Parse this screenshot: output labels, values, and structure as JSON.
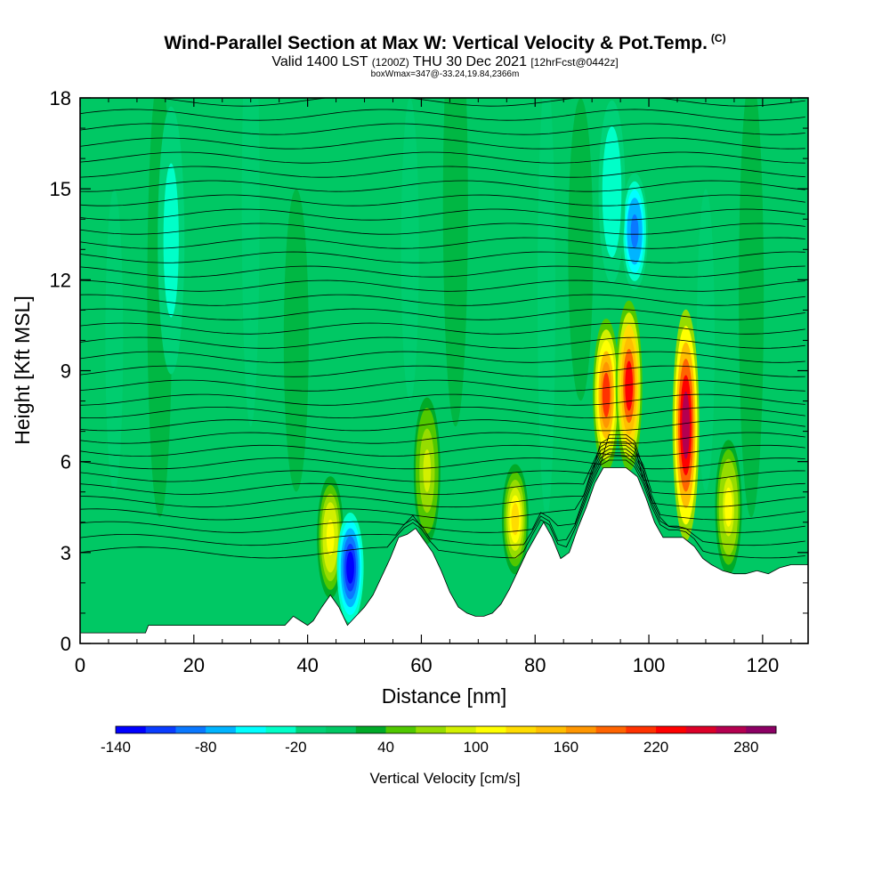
{
  "chart_data": {
    "type": "heatmap",
    "title": "Wind-Parallel Section at Max W: Vertical Velocity & Pot.Temp.",
    "title_mark": "(C)",
    "subtitle_valid": "Valid 1400 LST",
    "subtitle_z": "(1200Z)",
    "subtitle_date": "THU 30 Dec 2021",
    "subtitle_fcst": "[12hrFcst@0442z]",
    "subsubtitle": "boxWmax=347@-33.24,19.84,2366m",
    "xlabel": "Distance [nm]",
    "ylabel": "Height [Kft MSL]",
    "xlim": [
      0,
      128
    ],
    "ylim": [
      0,
      18
    ],
    "x_ticks": [
      0,
      20,
      40,
      60,
      80,
      100,
      120
    ],
    "y_ticks": [
      0,
      3,
      6,
      9,
      12,
      15,
      18
    ],
    "colorbar": {
      "label": "Vertical Velocity [cm/s]",
      "range": [
        -140,
        300
      ],
      "tick_labels": [
        "-140",
        "-80",
        "-20",
        "40",
        "100",
        "160",
        "220",
        "280"
      ],
      "tick_values": [
        -140,
        -80,
        -20,
        40,
        100,
        160,
        220,
        280
      ],
      "colors": [
        "#0000ff",
        "#0a3cff",
        "#0a78ff",
        "#00b4ff",
        "#00ffff",
        "#00ffc8",
        "#00d278",
        "#00c864",
        "#00aa28",
        "#50c800",
        "#96dc00",
        "#d2f000",
        "#ffff00",
        "#ffdc00",
        "#ffbe00",
        "#ff9600",
        "#ff6400",
        "#ff3200",
        "#ff0000",
        "#dc0028",
        "#b40050",
        "#8c0064"
      ]
    },
    "terrain_kft": [
      [
        0,
        0.35
      ],
      [
        11.5,
        0.35
      ],
      [
        12,
        0.6
      ],
      [
        36,
        0.6
      ],
      [
        37.5,
        0.9
      ],
      [
        40,
        0.6
      ],
      [
        41,
        0.75
      ],
      [
        42.5,
        1.2
      ],
      [
        44,
        1.6
      ],
      [
        45.5,
        1.2
      ],
      [
        47,
        0.6
      ],
      [
        48.5,
        0.9
      ],
      [
        50,
        1.2
      ],
      [
        51.5,
        1.6
      ],
      [
        53,
        2.2
      ],
      [
        54.5,
        2.8
      ],
      [
        56,
        3.5
      ],
      [
        57.5,
        3.6
      ],
      [
        59,
        3.8
      ],
      [
        60.5,
        3.4
      ],
      [
        62,
        3.0
      ],
      [
        63.5,
        2.4
      ],
      [
        65,
        1.7
      ],
      [
        66.5,
        1.2
      ],
      [
        68,
        1.0
      ],
      [
        69.5,
        0.9
      ],
      [
        71,
        0.9
      ],
      [
        72.5,
        1.0
      ],
      [
        74,
        1.3
      ],
      [
        75.5,
        1.8
      ],
      [
        77,
        2.4
      ],
      [
        78.5,
        3.0
      ],
      [
        80,
        3.5
      ],
      [
        81.5,
        4.0
      ],
      [
        83,
        3.5
      ],
      [
        84.5,
        2.8
      ],
      [
        86,
        3.0
      ],
      [
        87.5,
        3.8
      ],
      [
        89,
        4.5
      ],
      [
        90.5,
        5.3
      ],
      [
        92,
        5.8
      ],
      [
        94,
        5.8
      ],
      [
        96,
        5.8
      ],
      [
        98,
        5.5
      ],
      [
        99.5,
        4.8
      ],
      [
        101,
        4.0
      ],
      [
        102.5,
        3.5
      ],
      [
        104,
        3.5
      ],
      [
        106,
        3.5
      ],
      [
        108,
        3.2
      ],
      [
        109.5,
        2.8
      ],
      [
        111,
        2.6
      ],
      [
        113,
        2.4
      ],
      [
        115,
        2.3
      ],
      [
        117,
        2.3
      ],
      [
        119,
        2.4
      ],
      [
        121,
        2.3
      ],
      [
        123,
        2.5
      ],
      [
        125,
        2.6
      ],
      [
        128,
        2.6
      ]
    ],
    "updraft_cells": [
      {
        "x": 44,
        "z_bottom": 1.6,
        "z_top": 5.4,
        "peak_cm_s": 110
      },
      {
        "x": 61,
        "z_bottom": 3.4,
        "z_top": 8.0,
        "peak_cm_s": 90
      },
      {
        "x": 76.5,
        "z_bottom": 2.4,
        "z_top": 5.8,
        "peak_cm_s": 130
      },
      {
        "x": 92.5,
        "z_bottom": 5.8,
        "z_top": 10.6,
        "peak_cm_s": 200
      },
      {
        "x": 96.5,
        "z_bottom": 5.8,
        "z_top": 11.2,
        "peak_cm_s": 220
      },
      {
        "x": 106.5,
        "z_bottom": 3.5,
        "z_top": 10.9,
        "peak_cm_s": 260
      },
      {
        "x": 114,
        "z_bottom": 2.4,
        "z_top": 6.6,
        "peak_cm_s": 100
      }
    ],
    "downdraft_cells": [
      {
        "x": 47.5,
        "z_bottom": 0.8,
        "z_top": 4.2,
        "min_cm_s": -130
      },
      {
        "x": 97.5,
        "z_bottom": 11.8,
        "z_top": 15.4,
        "min_cm_s": -90
      },
      {
        "x": 93.5,
        "z_bottom": 12.0,
        "z_top": 17.8,
        "min_cm_s": -40
      },
      {
        "x": 16,
        "z_bottom": 9.0,
        "z_top": 17.6,
        "min_cm_s": -30
      }
    ]
  }
}
